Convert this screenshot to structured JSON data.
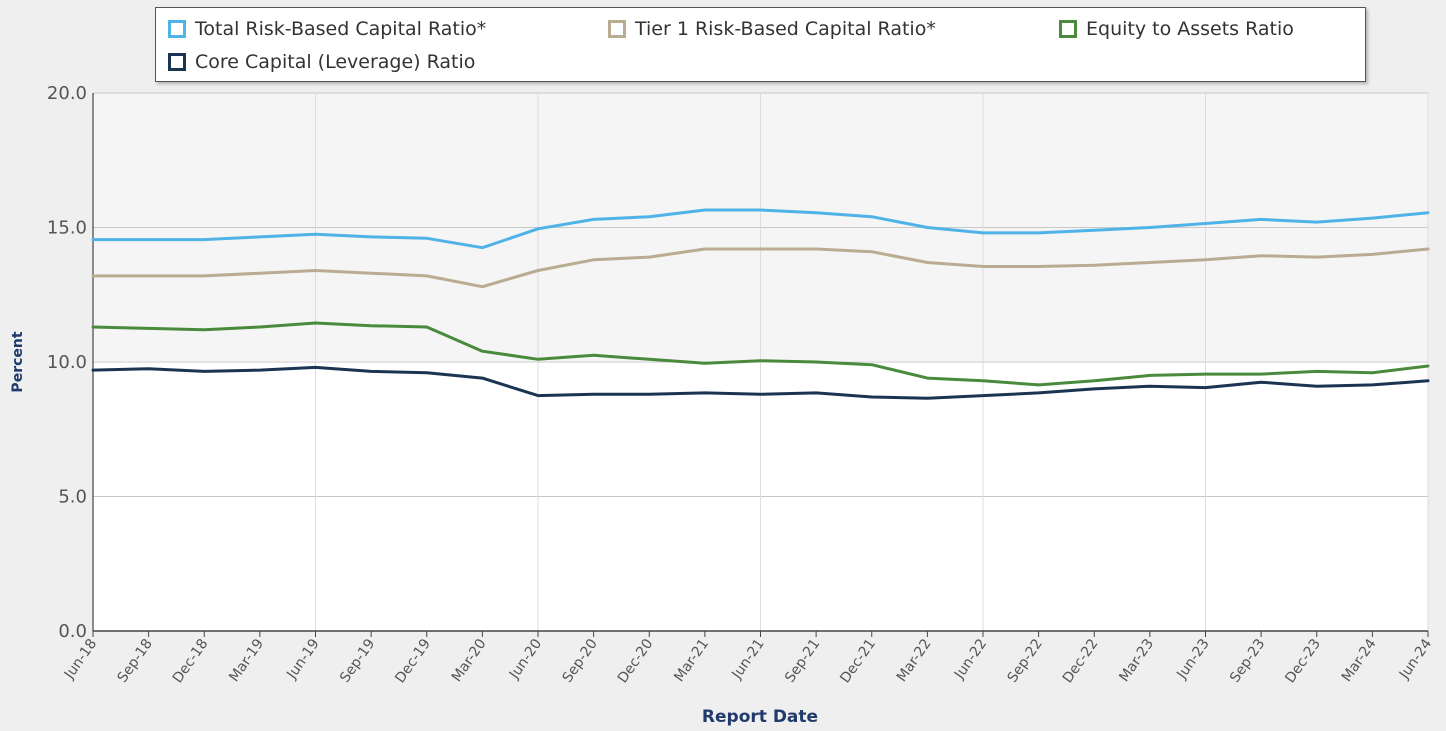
{
  "chart_data": {
    "type": "line",
    "xlabel": "Report Date",
    "ylabel": "Percent",
    "ylim": [
      0,
      20
    ],
    "yticks": [
      "0.0",
      "5.0",
      "10.0",
      "15.0",
      "20.0"
    ],
    "grid": true,
    "legend_position": "top",
    "categories": [
      "Jun-18",
      "Sep-18",
      "Dec-18",
      "Mar-19",
      "Jun-19",
      "Sep-19",
      "Dec-19",
      "Mar-20",
      "Jun-20",
      "Sep-20",
      "Dec-20",
      "Mar-21",
      "Jun-21",
      "Sep-21",
      "Dec-21",
      "Mar-22",
      "Jun-22",
      "Sep-22",
      "Dec-22",
      "Mar-23",
      "Jun-23",
      "Sep-23",
      "Dec-23",
      "Mar-24",
      "Jun-24"
    ],
    "series": [
      {
        "name": "Total Risk-Based Capital Ratio*",
        "color": "#4fb3e8",
        "values": [
          14.55,
          14.55,
          14.55,
          14.65,
          14.75,
          14.65,
          14.6,
          14.25,
          14.95,
          15.3,
          15.4,
          15.65,
          15.65,
          15.55,
          15.4,
          15.0,
          14.8,
          14.8,
          14.9,
          15.0,
          15.15,
          15.3,
          15.2,
          15.35,
          15.55
        ]
      },
      {
        "name": "Tier 1 Risk-Based Capital Ratio*",
        "color": "#b9ac90",
        "values": [
          13.2,
          13.2,
          13.2,
          13.3,
          13.4,
          13.3,
          13.2,
          12.8,
          13.4,
          13.8,
          13.9,
          14.2,
          14.2,
          14.2,
          14.1,
          13.7,
          13.55,
          13.55,
          13.6,
          13.7,
          13.8,
          13.95,
          13.9,
          14.0,
          14.2
        ]
      },
      {
        "name": "Equity to Assets Ratio",
        "color": "#4a8a3c",
        "values": [
          11.3,
          11.25,
          11.2,
          11.3,
          11.45,
          11.35,
          11.3,
          10.4,
          10.1,
          10.25,
          10.1,
          9.95,
          10.05,
          10.0,
          9.9,
          9.4,
          9.3,
          9.15,
          9.3,
          9.5,
          9.55,
          9.55,
          9.65,
          9.6,
          9.85
        ]
      },
      {
        "name": "Core Capital (Leverage) Ratio",
        "color": "#1a3552",
        "values": [
          9.7,
          9.75,
          9.65,
          9.7,
          9.8,
          9.65,
          9.6,
          9.4,
          8.75,
          8.8,
          8.8,
          8.85,
          8.8,
          8.85,
          8.7,
          8.65,
          8.75,
          8.85,
          9.0,
          9.1,
          9.05,
          9.25,
          9.1,
          9.15,
          9.3
        ]
      }
    ]
  }
}
